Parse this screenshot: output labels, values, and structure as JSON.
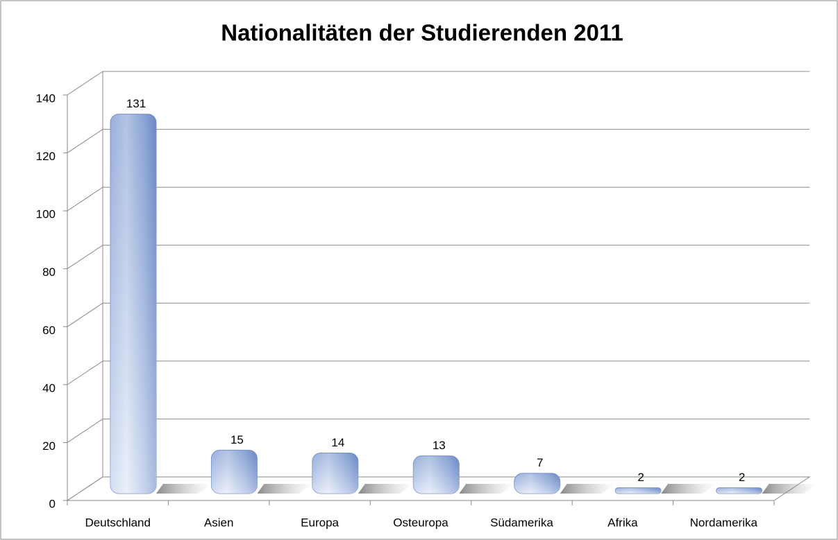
{
  "chart_data": {
    "type": "bar",
    "title": "Nationalitäten der Studierenden 2011",
    "categories": [
      "Deutschland",
      "Asien",
      "Europa",
      "Osteuropa",
      "Südamerika",
      "Afrika",
      "Nordamerika"
    ],
    "values": [
      131,
      15,
      14,
      13,
      7,
      2,
      2
    ],
    "color": "#8eaadb",
    "ylim": [
      0,
      140
    ],
    "yticks": [
      0,
      20,
      40,
      60,
      80,
      100,
      120,
      140
    ],
    "grid": true
  }
}
